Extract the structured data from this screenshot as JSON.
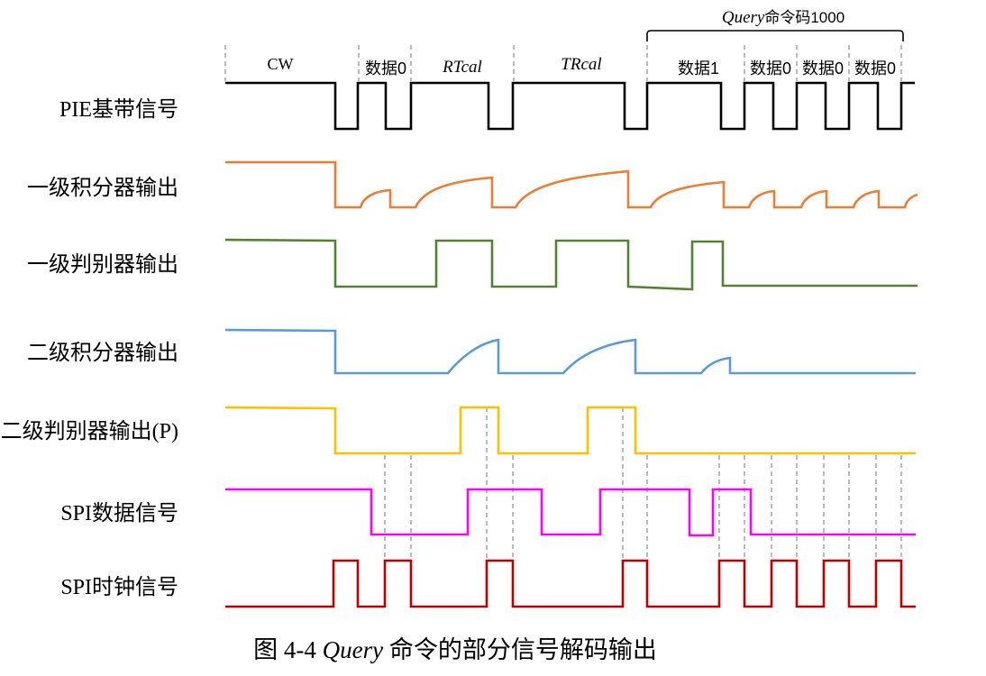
{
  "figure": {
    "command_header": {
      "name": "Query",
      "code_text": "命令码1000"
    },
    "segments": [
      "CW",
      "数据0",
      "RTcal",
      "TRcal",
      "数据1",
      "数据0",
      "数据0",
      "数据0"
    ],
    "signals": [
      {
        "label": "PIE基带信号",
        "color": "#000000"
      },
      {
        "label": "一级积分器输出",
        "color": "#ED7D31"
      },
      {
        "label": "一级判别器输出",
        "color": "#548235"
      },
      {
        "label": "二级积分器输出",
        "color": "#5B9BD5"
      },
      {
        "label": "二级判别器输出(P)",
        "color": "#FFC000"
      },
      {
        "label": "SPI数据信号",
        "color": "#FF00FF"
      },
      {
        "label": "SPI时钟信号",
        "color": "#C00000"
      }
    ],
    "caption": {
      "prefix": "图 4-4 ",
      "emphasis": "Query",
      "suffix": " 命令的部分信号解码输出"
    }
  }
}
